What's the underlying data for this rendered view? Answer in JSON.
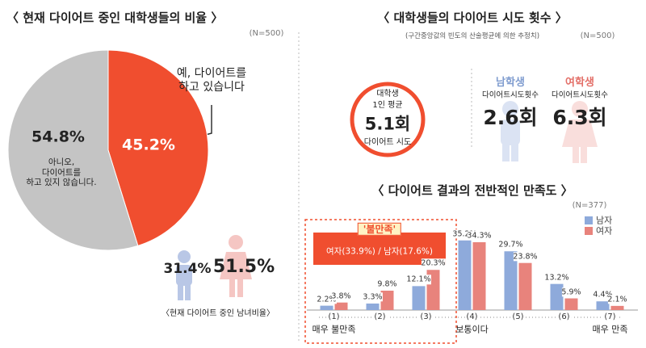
{
  "chart_data": [
    {
      "type": "pie",
      "title": "〈 현재 다이어트 중인 대학생들의 비율 〉",
      "note": "(N=500)",
      "categories": [
        "예, 다이어트를\n하고 있습니다",
        "아니오,\n다이어트를\n하고 있지 않습니다."
      ],
      "values": [
        45.2,
        54.8
      ],
      "value_labels": [
        "45.2%",
        "54.8%"
      ],
      "colors": [
        "#f04e2f",
        "#c4c4c4"
      ]
    },
    {
      "type": "bar",
      "title": "〈 다이어트 결과의 전반적인 만족도 〉",
      "note": "(N=377)",
      "categories": [
        "(1)",
        "(2)",
        "(3)",
        "(4)",
        "(5)",
        "(6)",
        "(7)"
      ],
      "category_labels": [
        "매우 불만족",
        null,
        null,
        "보통이다",
        null,
        null,
        "매우 만족"
      ],
      "series": [
        {
          "name": "남자",
          "color": "#8eaadb",
          "values": [
            2.2,
            3.3,
            12.1,
            35.2,
            29.7,
            13.2,
            4.4
          ],
          "value_labels": [
            "2.2%",
            "3.3%",
            "12.1%",
            "35.2%",
            "29.7%",
            "13.2%",
            "4.4%"
          ]
        },
        {
          "name": "여자",
          "color": "#e8837c",
          "values": [
            3.8,
            9.8,
            20.3,
            34.3,
            23.8,
            5.9,
            2.1
          ],
          "value_labels": [
            "3.8%",
            "9.8%",
            "20.3%",
            "34.3%",
            "23.8%",
            "5.9%",
            "2.1%"
          ]
        }
      ],
      "annotation": {
        "title": "'불만족'",
        "text": "여자(33.9%) / 남자(17.6%)"
      }
    }
  ],
  "gender_ratio": {
    "male": "31.4%",
    "female": "51.5%",
    "caption": "〈현재 다이어트 중인 남녀비율〉"
  },
  "attempts": {
    "title": "〈 대학생들의 다이어트 시도 횟수 〉",
    "subtitle": "(구간중앙값의 빈도의 산술평균에 의한 추정치)",
    "note": "(N=500)",
    "average": {
      "line1": "대학생",
      "line2": "1인 평균",
      "value": "5.1회",
      "caption": "다이어트 시도"
    },
    "male": {
      "label": "남학생",
      "sub": "다이어트시도횟수",
      "value": "2.6회"
    },
    "female": {
      "label": "여학생",
      "sub": "다이어트시도횟수",
      "value": "6.3회"
    }
  }
}
